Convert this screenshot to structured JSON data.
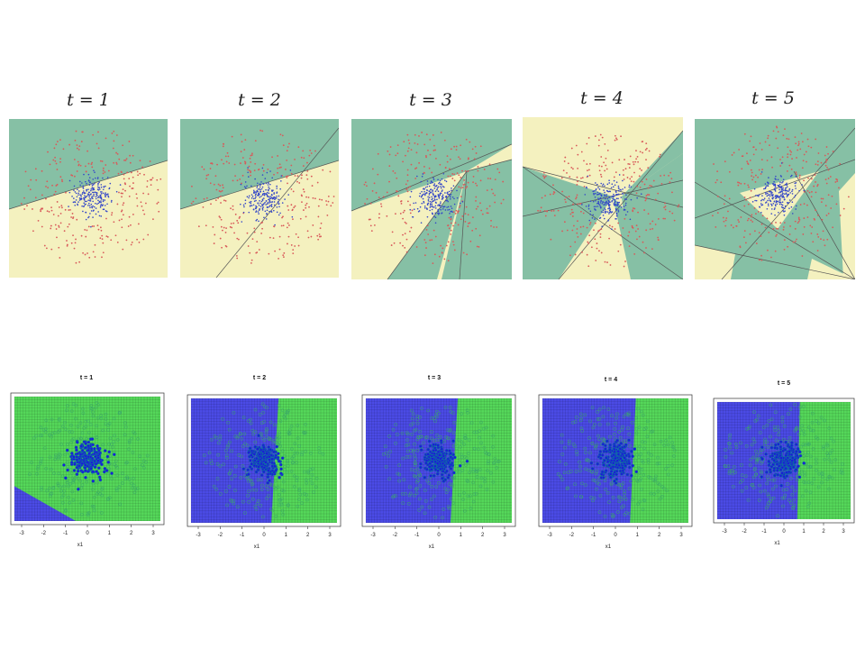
{
  "top_row": {
    "style": "linear-boundaries",
    "colors": {
      "region_a": "#86c0a5",
      "region_b": "#f4f1bf",
      "red_points": "#d85a5a",
      "blue_points": "#3346c8"
    },
    "panels": [
      {
        "title": "t = 1"
      },
      {
        "title": "t = 2"
      },
      {
        "title": "t = 3"
      },
      {
        "title": "t = 4"
      },
      {
        "title": "t = 5"
      }
    ]
  },
  "bottom_row": {
    "style": "grid-decision-regions",
    "colors": {
      "blue_region": "#4b4be6",
      "green_region": "#55d85a",
      "points": "#2e8a9a"
    },
    "x_axis": {
      "label": "x1",
      "ticks": [
        "-3",
        "-2",
        "-1",
        "0",
        "1",
        "2",
        "3"
      ]
    },
    "panels": [
      {
        "title": "t = 1"
      },
      {
        "title": "t = 2"
      },
      {
        "title": "t = 3"
      },
      {
        "title": "t = 4"
      },
      {
        "title": "t = 5"
      }
    ]
  }
}
